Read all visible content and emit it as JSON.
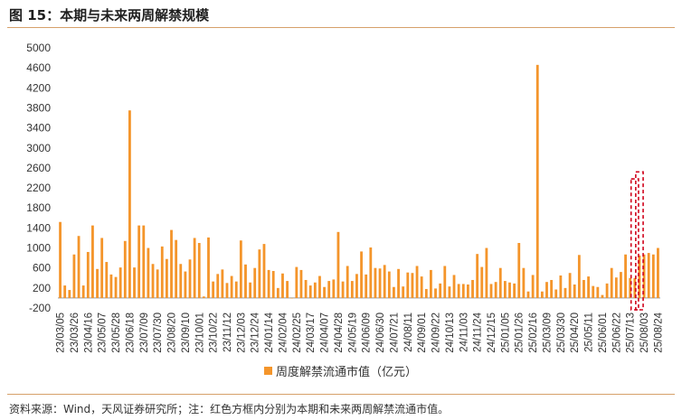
{
  "title": "图 15：本期与未来两周解禁规模",
  "source": "资料来源：Wind，天风证券研究所；注：红色方框内分别为本期和未来两周解禁流通市值。",
  "chart_data": {
    "type": "bar",
    "color": "#f4952b",
    "highlight_color": "#d0021b",
    "ylim": [
      -200,
      5000
    ],
    "yticks": [
      -200,
      200,
      600,
      1000,
      1400,
      1800,
      2200,
      2600,
      3000,
      3400,
      3800,
      4200,
      4600,
      5000
    ],
    "x_tick_labels": [
      "23/03/05",
      "23/03/26",
      "23/04/16",
      "23/05/07",
      "23/05/28",
      "23/06/18",
      "23/07/09",
      "23/07/30",
      "23/08/20",
      "23/09/10",
      "23/10/01",
      "23/10/22",
      "23/11/12",
      "23/12/03",
      "23/12/24",
      "24/01/14",
      "24/02/04",
      "24/02/25",
      "24/03/17",
      "24/04/07",
      "24/04/28",
      "24/05/19",
      "24/06/09",
      "24/06/30",
      "24/07/21",
      "24/08/11",
      "24/09/01",
      "24/09/22",
      "24/10/13",
      "24/11/03",
      "24/11/24",
      "24/12/15",
      "25/01/05",
      "25/01/26",
      "25/02/16",
      "25/03/09",
      "25/03/30",
      "25/04/20",
      "25/05/11",
      "25/06/01",
      "25/06/22",
      "25/07/13",
      "25/08/03",
      "25/08/24"
    ],
    "series": [
      {
        "name": "周度解禁流通市值（亿元）",
        "values": [
          1520,
          250,
          160,
          870,
          1240,
          250,
          920,
          1450,
          580,
          1200,
          720,
          470,
          420,
          610,
          1140,
          3750,
          610,
          1450,
          1450,
          1000,
          680,
          570,
          1030,
          780,
          1360,
          1160,
          680,
          530,
          770,
          1200,
          1100,
          30,
          1210,
          330,
          480,
          570,
          300,
          440,
          330,
          1150,
          670,
          310,
          600,
          970,
          1080,
          560,
          540,
          200,
          490,
          340,
          0,
          620,
          560,
          360,
          250,
          310,
          440,
          220,
          340,
          370,
          1320,
          330,
          640,
          340,
          480,
          930,
          470,
          1010,
          600,
          590,
          660,
          530,
          220,
          580,
          230,
          510,
          500,
          640,
          430,
          180,
          560,
          190,
          290,
          640,
          230,
          460,
          280,
          280,
          270,
          360,
          880,
          620,
          1000,
          280,
          320,
          600,
          340,
          310,
          290,
          1100,
          600,
          130,
          460,
          4660,
          130,
          320,
          360,
          170,
          450,
          200,
          500,
          270,
          860,
          360,
          430,
          240,
          220,
          60,
          290,
          600,
          410,
          520,
          870,
          400,
          400,
          850,
          870,
          900,
          870,
          1000
        ]
      }
    ],
    "highlight_indices": [
      124,
      125
    ]
  }
}
